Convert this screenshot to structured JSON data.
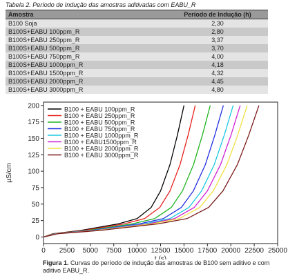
{
  "table": {
    "title": "Tabela 2. Período de Indução das amostras aditivadas com EABU_R",
    "columns": [
      "Amostra",
      "Período de Indução (h)"
    ],
    "rows": [
      [
        "B100 Soja",
        "2,30"
      ],
      [
        "B100S+EABU 100ppm_R",
        "2,80"
      ],
      [
        "B100S+EABU 250ppm_R",
        "3,37"
      ],
      [
        "B100S+EABU 500ppm_R",
        "3,70"
      ],
      [
        "B100S+EABU 750ppm_R",
        "4,00"
      ],
      [
        "B100S+EABU 1000ppm_R",
        "4,18"
      ],
      [
        "B100S+EABU 1500ppm_R",
        "4,32"
      ],
      [
        "B100S+EABU 2000ppm_R",
        "4,45"
      ],
      [
        "B100S+EABU 3000ppm_R",
        "4,80"
      ]
    ]
  },
  "chart_data": {
    "type": "line",
    "x_label": "t (s)",
    "y_label": "µS/cm",
    "xlim": [
      0,
      25000
    ],
    "xticks": [
      0,
      2500,
      5000,
      7500,
      10000,
      12500,
      15000,
      17500,
      20000,
      22500,
      25000
    ],
    "ylim": [
      -10,
      205
    ],
    "yticks": [
      0,
      25,
      50,
      75,
      100,
      125,
      150,
      175,
      200
    ],
    "legend": "top-left",
    "series": [
      {
        "name": "B100 + EABU 100ppm_R",
        "color": "#000000",
        "x": [
          0,
          1000,
          4000,
          8000,
          10000,
          11500,
          12500,
          13500,
          14300,
          15000
        ],
        "values": [
          0,
          5,
          10,
          20,
          28,
          45,
          70,
          110,
          155,
          200
        ]
      },
      {
        "name": "B100 + EABU 250ppm_R",
        "color": "#e8201c",
        "x": [
          0,
          1080,
          4320,
          8640,
          10800,
          12420,
          13500,
          14580,
          15440,
          16200
        ],
        "values": [
          0,
          5,
          10,
          20,
          28,
          45,
          70,
          110,
          155,
          200
        ]
      },
      {
        "name": "B100 + EABU 500ppm_R",
        "color": "#1fb51f",
        "x": [
          0,
          1190,
          4750,
          9500,
          11870,
          13650,
          14840,
          16020,
          16970,
          17800
        ],
        "values": [
          0,
          5,
          10,
          20,
          28,
          45,
          70,
          110,
          155,
          200
        ]
      },
      {
        "name": "B100 + EABU 750ppm_R",
        "color": "#2030e0",
        "x": [
          0,
          1280,
          5120,
          10240,
          12800,
          14720,
          16000,
          17280,
          18300,
          19200
        ],
        "values": [
          0,
          5,
          10,
          20,
          28,
          45,
          70,
          110,
          155,
          200
        ]
      },
      {
        "name": "B100 + EABU 1000ppm_R",
        "color": "#19c8e0",
        "x": [
          0,
          1350,
          5400,
          10800,
          13500,
          15530,
          16880,
          18230,
          19310,
          20250
        ],
        "values": [
          0,
          5,
          10,
          20,
          28,
          45,
          70,
          110,
          155,
          200
        ]
      },
      {
        "name": "B100 + EABU1500ppm_R",
        "color": "#d020d0",
        "x": [
          0,
          1400,
          5600,
          11200,
          14000,
          16100,
          17500,
          18900,
          20020,
          21000
        ],
        "values": [
          0,
          5,
          10,
          20,
          28,
          45,
          70,
          110,
          155,
          200
        ]
      },
      {
        "name": "B100 + EABU 2000ppm_R",
        "color": "#f0e040",
        "x": [
          0,
          1450,
          5800,
          11600,
          14500,
          16680,
          18130,
          19580,
          20740,
          21750
        ],
        "values": [
          0,
          5,
          10,
          20,
          28,
          45,
          70,
          110,
          155,
          200
        ]
      },
      {
        "name": "B100 + EABU 3000ppm_R",
        "color": "#7a1a1a",
        "x": [
          0,
          1530,
          6130,
          12260,
          15330,
          17630,
          19160,
          20700,
          21920,
          23000
        ],
        "values": [
          0,
          5,
          10,
          20,
          28,
          45,
          70,
          110,
          155,
          200
        ]
      }
    ]
  },
  "caption": {
    "label": "Figura 1.",
    "text": "Curvas do período de indução das amostras de B100 sem aditivo e com aditivo EABU_R."
  }
}
